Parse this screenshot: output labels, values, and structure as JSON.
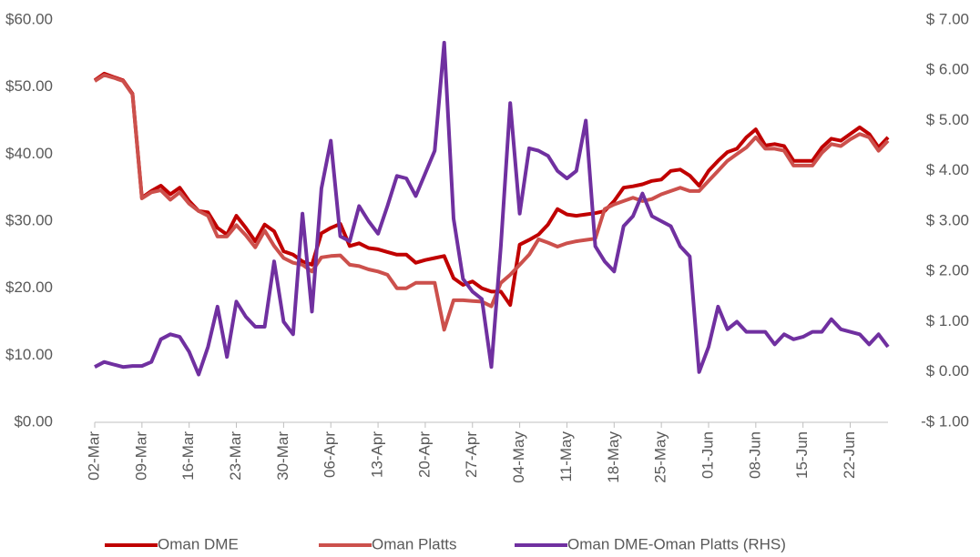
{
  "chart_data": {
    "type": "line",
    "categories": [
      "02-Mar",
      null,
      null,
      null,
      null,
      "09-Mar",
      null,
      null,
      null,
      null,
      "16-Mar",
      null,
      null,
      null,
      null,
      "23-Mar",
      null,
      null,
      null,
      null,
      "30-Mar",
      null,
      null,
      null,
      null,
      "06-Apr",
      null,
      null,
      null,
      null,
      "13-Apr",
      null,
      null,
      null,
      null,
      "20-Apr",
      null,
      null,
      null,
      null,
      "27-Apr",
      null,
      null,
      null,
      null,
      "04-May",
      null,
      null,
      null,
      null,
      "11-May",
      null,
      null,
      null,
      null,
      "18-May",
      null,
      null,
      null,
      null,
      "25-May",
      null,
      null,
      null,
      null,
      "01-Jun",
      null,
      null,
      null,
      null,
      "08-Jun",
      null,
      null,
      null,
      null,
      "15-Jun",
      null,
      null,
      null,
      null,
      "22-Jun",
      null,
      null,
      null,
      null
    ],
    "series": [
      {
        "name": "Oman DME",
        "color": "#c00000",
        "values": [
          51,
          52,
          51.5,
          51,
          49,
          33.5,
          34.5,
          35.3,
          34,
          35,
          33,
          31.5,
          31.3,
          29,
          28,
          30.8,
          29,
          27,
          29.5,
          28.5,
          25.5,
          25,
          24,
          23.5,
          28.2,
          29,
          29.6,
          26.3,
          26.7,
          26,
          25.8,
          25.4,
          25,
          25,
          23.8,
          24.2,
          24.5,
          24.8,
          21.5,
          20.5,
          21,
          20,
          19.5,
          19.5,
          17.5,
          26.5,
          27.2,
          28,
          29.5,
          31.8,
          31,
          30.8,
          31,
          31.2,
          31.5,
          33,
          35,
          35.2,
          35.5,
          36,
          36.2,
          37.5,
          37.7,
          36.8,
          35.3,
          37.5,
          39,
          40.3,
          40.8,
          42.5,
          43.7,
          41.3,
          41.5,
          41.2,
          39,
          39,
          39,
          41,
          42.3,
          42,
          43,
          44,
          43,
          41,
          42.5
        ]
      },
      {
        "name": "Oman Platts",
        "color": "#cc504c",
        "values": [
          50.9,
          51.8,
          51.4,
          50.9,
          48.9,
          33.4,
          34.3,
          34.6,
          33.2,
          34.3,
          32.6,
          31.5,
          30.8,
          27.7,
          27.7,
          29.4,
          27.9,
          26.1,
          28.6,
          26.3,
          24.5,
          23.8,
          23.5,
          22.5,
          24.6,
          24.8,
          24.9,
          23.5,
          23.3,
          22.8,
          22.5,
          22,
          20,
          20,
          20.8,
          20.8,
          20.8,
          13.8,
          18.2,
          18.2,
          18.1,
          18,
          17.3,
          20.8,
          22,
          23.5,
          25,
          27.3,
          26.8,
          26.2,
          26.7,
          27,
          27.2,
          27.4,
          31.8,
          32.5,
          33,
          33.5,
          33,
          33.3,
          34,
          34.5,
          35,
          34.5,
          34.5,
          36,
          37.5,
          39,
          40,
          41,
          42.5,
          40.8,
          40.8,
          40.5,
          38.3,
          38.3,
          38.3,
          40.2,
          41.5,
          41.2,
          42.2,
          43,
          42.5,
          40.5,
          42
        ]
      },
      {
        "name": "Oman DME-Oman Platts (RHS)",
        "color": "#7030a0",
        "axis": "y2",
        "values": [
          0.1,
          0.2,
          0.15,
          0.1,
          0.12,
          0.12,
          0.2,
          0.65,
          0.75,
          0.7,
          0.4,
          -0.05,
          0.5,
          1.3,
          0.3,
          1.4,
          1.1,
          0.9,
          0.9,
          2.2,
          1.0,
          0.75,
          3.15,
          1.2,
          3.65,
          4.6,
          2.7,
          2.6,
          3.3,
          3.0,
          2.75,
          3.3,
          3.9,
          3.85,
          3.5,
          3.95,
          4.4,
          6.55,
          3.05,
          1.85,
          1.6,
          1.45,
          0.1,
          2.5,
          5.35,
          3.15,
          4.45,
          4.4,
          4.3,
          4.0,
          3.85,
          4.0,
          5.0,
          2.5,
          2.2,
          2.0,
          2.9,
          3.1,
          3.55,
          3.1,
          3.0,
          2.9,
          2.5,
          2.3,
          0.0,
          0.5,
          1.3,
          0.85,
          1.0,
          0.8,
          0.8,
          0.8,
          0.55,
          0.75,
          0.65,
          0.7,
          0.8,
          0.8,
          1.05,
          0.85,
          0.8,
          0.75,
          0.55,
          0.75,
          0.5
        ]
      }
    ],
    "ylim": [
      0,
      60
    ],
    "yticks": [
      {
        "value": 0,
        "label": "$0.00"
      },
      {
        "value": 10,
        "label": "$10.00"
      },
      {
        "value": 20,
        "label": "$20.00"
      },
      {
        "value": 30,
        "label": "$30.00"
      },
      {
        "value": 40,
        "label": "$40.00"
      },
      {
        "value": 50,
        "label": "$50.00"
      },
      {
        "value": 60,
        "label": "$60.00"
      }
    ],
    "y2lim": [
      -1,
      7
    ],
    "y2ticks": [
      {
        "value": -1,
        "label": "-$ 1.00"
      },
      {
        "value": 0,
        "label": "$ 0.00"
      },
      {
        "value": 1,
        "label": "$ 1.00"
      },
      {
        "value": 2,
        "label": "$ 2.00"
      },
      {
        "value": 3,
        "label": "$ 3.00"
      },
      {
        "value": 4,
        "label": "$ 4.00"
      },
      {
        "value": 5,
        "label": "$ 5.00"
      },
      {
        "value": 6,
        "label": "$ 6.00"
      },
      {
        "value": 7,
        "label": "$ 7.00"
      }
    ],
    "legend": "bottom"
  }
}
